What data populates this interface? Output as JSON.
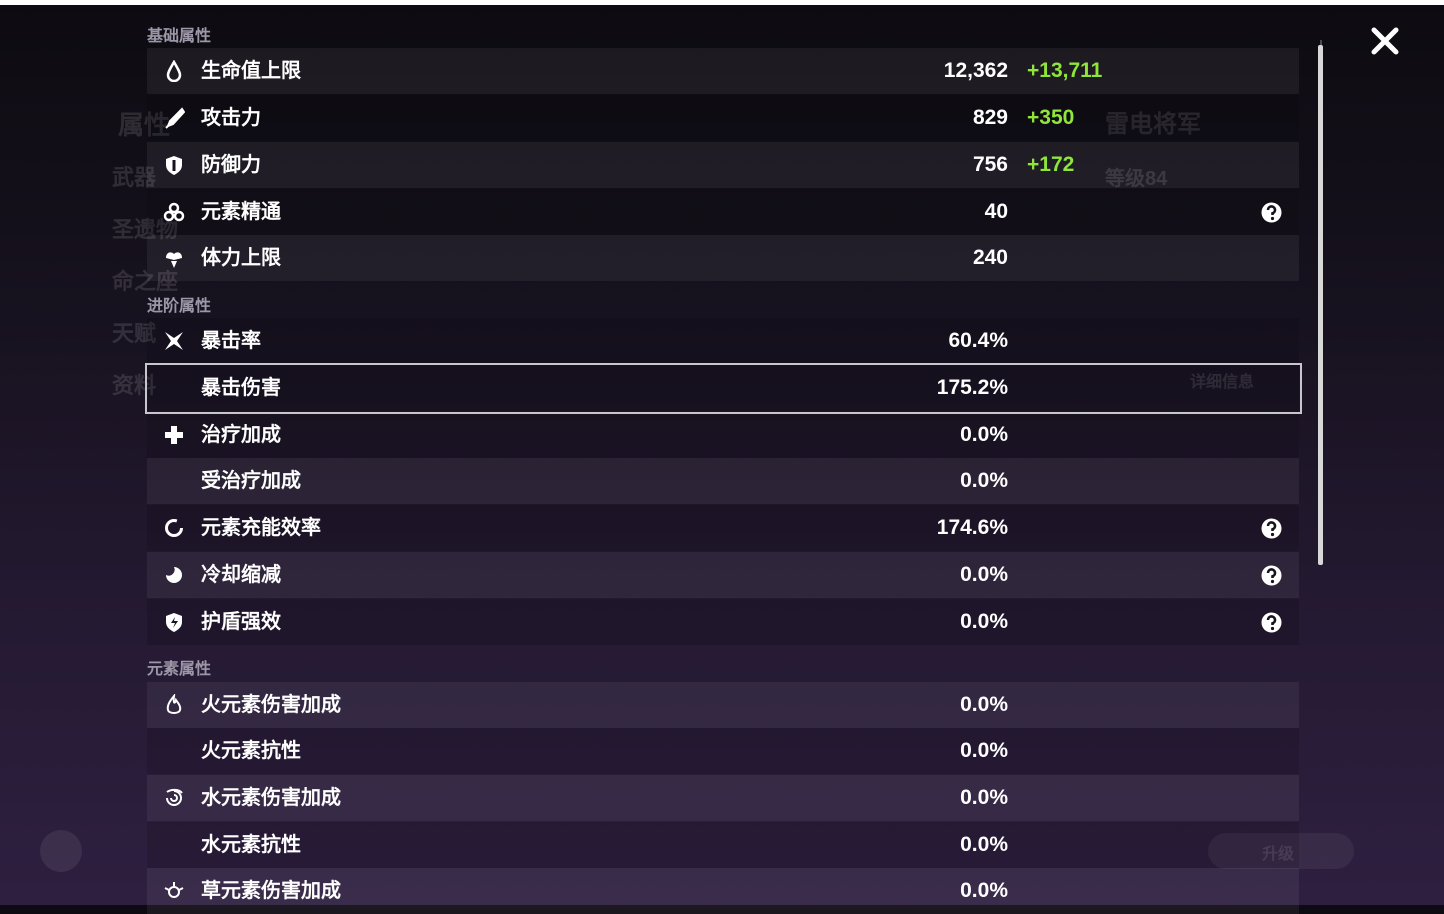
{
  "sections": [
    {
      "title": "基础属性",
      "rows": [
        {
          "name": "生命值上限",
          "value": "12,362",
          "bonus": "+13,711"
        },
        {
          "name": "攻击力",
          "value": "829",
          "bonus": "+350"
        },
        {
          "name": "防御力",
          "value": "756",
          "bonus": "+172"
        },
        {
          "name": "元素精通",
          "value": "40"
        },
        {
          "name": "体力上限",
          "value": "240"
        }
      ]
    },
    {
      "title": "进阶属性",
      "rows": [
        {
          "name": "暴击率",
          "value": "60.4%"
        },
        {
          "name": "暴击伤害",
          "value": "175.2%"
        },
        {
          "name": "治疗加成",
          "value": "0.0%"
        },
        {
          "name": "受治疗加成",
          "value": "0.0%"
        },
        {
          "name": "元素充能效率",
          "value": "174.6%"
        },
        {
          "name": "冷却缩减",
          "value": "0.0%"
        },
        {
          "name": "护盾强效",
          "value": "0.0%"
        }
      ]
    },
    {
      "title": "元素属性",
      "rows": [
        {
          "name": "火元素伤害加成",
          "value": "0.0%"
        },
        {
          "name": "火元素抗性",
          "value": "0.0%"
        },
        {
          "name": "水元素伤害加成",
          "value": "0.0%"
        },
        {
          "name": "水元素抗性",
          "value": "0.0%"
        },
        {
          "name": "草元素伤害加成",
          "value": "0.0%"
        }
      ]
    }
  ],
  "background": {
    "character": "雷电将军",
    "level": "等级84",
    "detail_button": "详细信息",
    "upgrade_button": "升级",
    "menu": [
      "属性",
      "武器",
      "圣遗物",
      "命之座",
      "天赋",
      "资料"
    ]
  }
}
